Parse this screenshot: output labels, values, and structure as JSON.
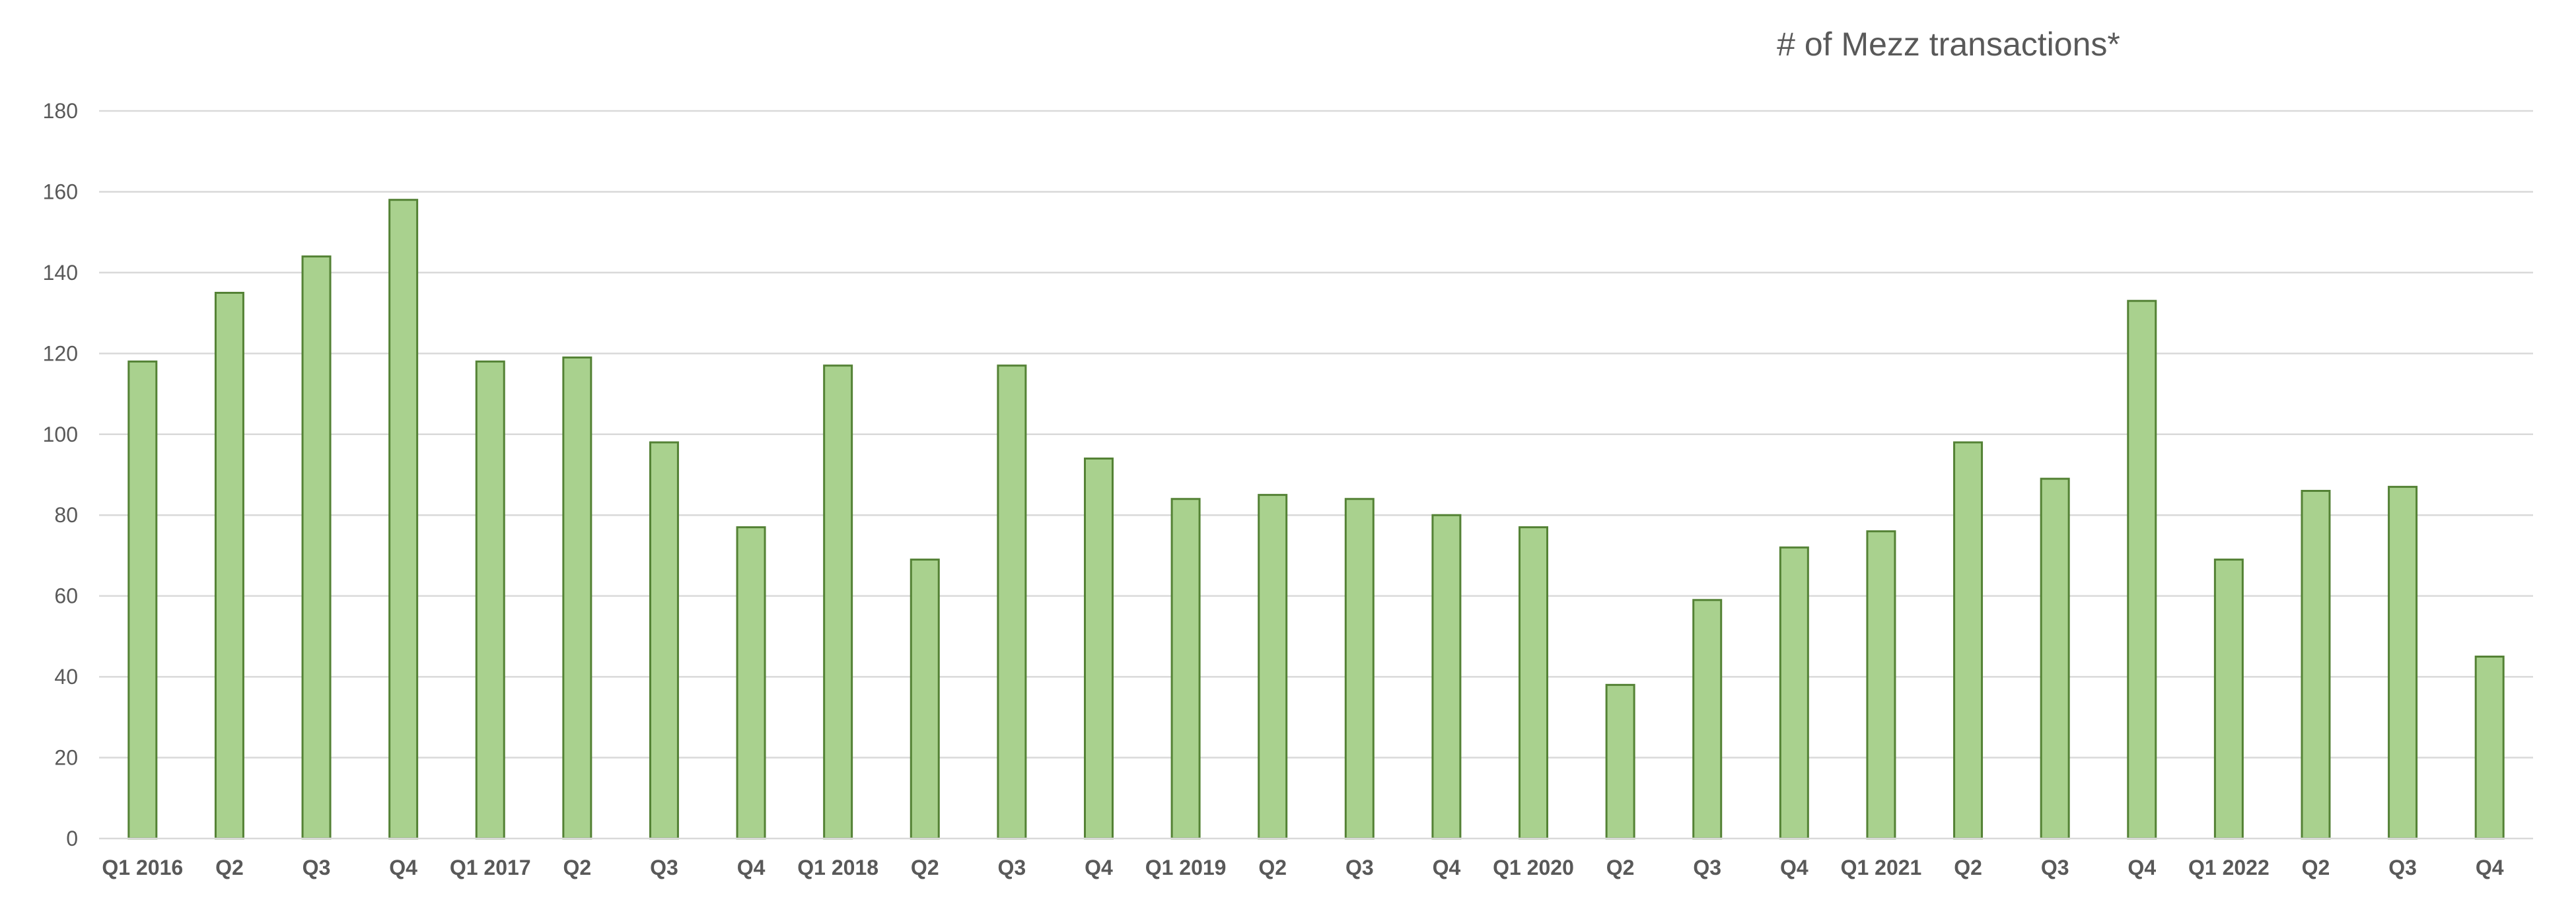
{
  "chart_data": {
    "type": "bar",
    "title": "# of Mezz transactions*",
    "xlabel": "",
    "ylabel": "",
    "ylim": [
      0,
      180
    ],
    "yticks": [
      0,
      20,
      40,
      60,
      80,
      100,
      120,
      140,
      160,
      180
    ],
    "grid": true,
    "legend": "none",
    "categories": [
      "Q1 2016",
      "Q2",
      "Q3",
      "Q4",
      "Q1 2017",
      "Q2",
      "Q3",
      "Q4",
      "Q1 2018",
      "Q2",
      "Q3",
      "Q4",
      "Q1 2019",
      "Q2",
      "Q3",
      "Q4",
      "Q1 2020",
      "Q2",
      "Q3",
      "Q4",
      "Q1 2021",
      "Q2",
      "Q3",
      "Q4",
      "Q1 2022",
      "Q2",
      "Q3",
      "Q4"
    ],
    "values": [
      118,
      135,
      144,
      158,
      118,
      119,
      98,
      77,
      117,
      69,
      117,
      94,
      84,
      85,
      84,
      80,
      77,
      38,
      59,
      72,
      76,
      98,
      89,
      133,
      69,
      86,
      87,
      45
    ],
    "colors": {
      "bar_fill": "#a9d18e",
      "bar_stroke": "#548235"
    }
  }
}
